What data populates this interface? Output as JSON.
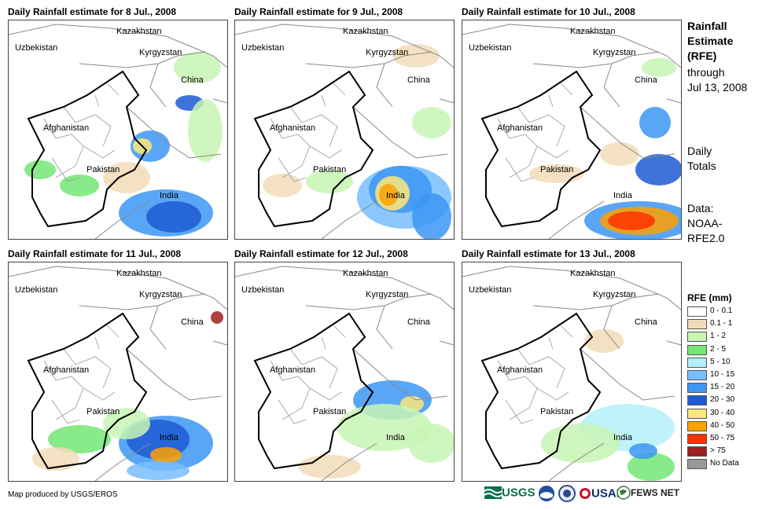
{
  "panels": [
    {
      "title": "Daily Rainfall estimate for 8 Jul., 2008"
    },
    {
      "title": "Daily Rainfall estimate for 9 Jul., 2008"
    },
    {
      "title": "Daily Rainfall estimate for 10 Jul., 2008"
    },
    {
      "title": "Daily Rainfall estimate for 11 Jul., 2008"
    },
    {
      "title": "Daily Rainfall estimate for 12 Jul., 2008"
    },
    {
      "title": "Daily Rainfall estimate for 13 Jul., 2008"
    }
  ],
  "countries": {
    "kazakhstan": "Kazakhstan",
    "uzbekistan": "Uzbekistan",
    "kyrgyzstan": "Kyrgyzstan",
    "china": "China",
    "afghanistan": "Afghanistan",
    "pakistan": "Pakistan",
    "india": "India"
  },
  "sidebar": {
    "title_lines": [
      "Rainfall",
      "Estimate",
      "(RFE)"
    ],
    "through": "through",
    "date": "Jul 13, 2008",
    "daily": "Daily",
    "totals": "Totals",
    "data_label": "Data:",
    "data_source_1": "NOAA-",
    "data_source_2": "RFE2.0"
  },
  "legend": {
    "title": "RFE (mm)",
    "items": [
      {
        "label": "0 - 0.1",
        "color": "#ffffff"
      },
      {
        "label": "0.1 - 1",
        "color": "#f2dcb8"
      },
      {
        "label": "1 - 2",
        "color": "#c8f5b4"
      },
      {
        "label": "2 - 5",
        "color": "#73e673"
      },
      {
        "label": "5 - 10",
        "color": "#b4f0fa"
      },
      {
        "label": "10 - 15",
        "color": "#78beff"
      },
      {
        "label": "15 - 20",
        "color": "#3c96f5"
      },
      {
        "label": "20 - 30",
        "color": "#1e5ad2"
      },
      {
        "label": "30 - 40",
        "color": "#ffe678"
      },
      {
        "label": "40 - 50",
        "color": "#ffa000"
      },
      {
        "label": "50 - 75",
        "color": "#ff3200"
      },
      {
        "label": "> 75",
        "color": "#a01e1e"
      },
      {
        "label": "No Data",
        "color": "#999999"
      }
    ]
  },
  "credit": "Map produced by USGS/EROS",
  "logos": {
    "usgs": "USGS",
    "usaid": "USAID",
    "fewsnet": "FEWS NET"
  }
}
